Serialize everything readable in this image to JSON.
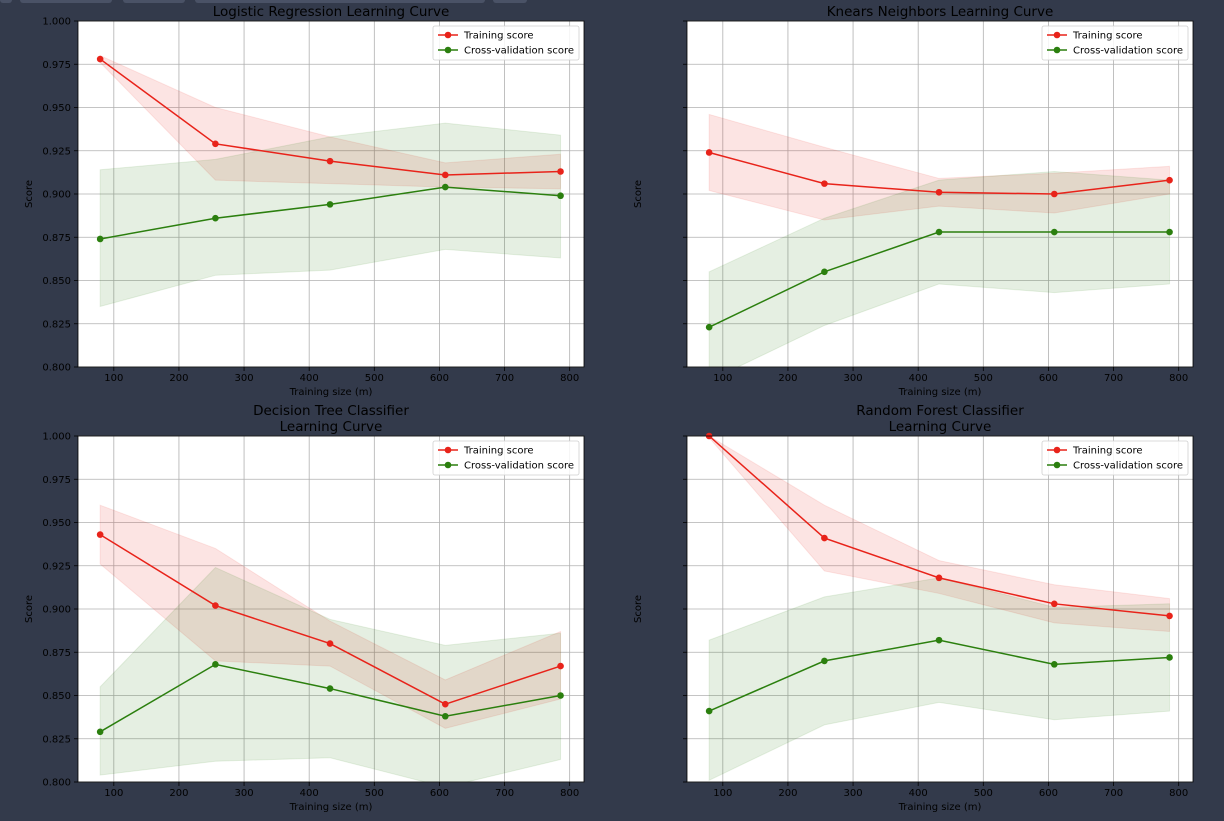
{
  "chart_data": [
    {
      "type": "line",
      "title": "Logistic Regression Learning Curve",
      "xlabel": "Training size (m)",
      "ylabel": "Score",
      "xlim": [
        45,
        822
      ],
      "ylim": [
        0.8,
        1.0
      ],
      "xticks": [
        "100",
        "200",
        "300",
        "400",
        "500",
        "600",
        "700",
        "800"
      ],
      "yticks": [
        "0.800",
        "0.825",
        "0.850",
        "0.875",
        "0.900",
        "0.925",
        "0.950",
        "0.975",
        "1.000"
      ],
      "show_ytick_labels": true,
      "grid": true,
      "legend_placement": "upper-right",
      "x": [
        79,
        256,
        432,
        609,
        786
      ],
      "series": [
        {
          "name": "Training score",
          "color": "#e8231a",
          "values": [
            0.978,
            0.929,
            0.919,
            0.911,
            0.913
          ],
          "band_low": [
            0.976,
            0.908,
            0.906,
            0.904,
            0.903
          ],
          "band_high": [
            0.98,
            0.95,
            0.933,
            0.918,
            0.923
          ]
        },
        {
          "name": "Cross-validation score",
          "color": "#2b7f0e",
          "values": [
            0.874,
            0.886,
            0.894,
            0.904,
            0.899
          ],
          "band_low": [
            0.835,
            0.853,
            0.856,
            0.868,
            0.863
          ],
          "band_high": [
            0.914,
            0.92,
            0.933,
            0.941,
            0.934
          ]
        }
      ]
    },
    {
      "type": "line",
      "title": "Knears Neighbors Learning Curve",
      "xlabel": "Training size (m)",
      "ylabel": "Score",
      "xlim": [
        45,
        822
      ],
      "ylim": [
        0.8,
        1.0
      ],
      "xticks": [
        "100",
        "200",
        "300",
        "400",
        "500",
        "600",
        "700",
        "800"
      ],
      "yticks": [],
      "show_ytick_labels": false,
      "grid": true,
      "legend_placement": "upper-right",
      "x": [
        79,
        256,
        432,
        609,
        786
      ],
      "series": [
        {
          "name": "Training score",
          "color": "#e8231a",
          "values": [
            0.924,
            0.906,
            0.901,
            0.9,
            0.908
          ],
          "band_low": [
            0.902,
            0.885,
            0.893,
            0.889,
            0.9
          ],
          "band_high": [
            0.946,
            0.927,
            0.909,
            0.912,
            0.916
          ]
        },
        {
          "name": "Cross-validation score",
          "color": "#2b7f0e",
          "values": [
            0.823,
            0.855,
            0.878,
            0.878,
            0.878
          ],
          "band_low": [
            0.792,
            0.824,
            0.848,
            0.843,
            0.848
          ],
          "band_high": [
            0.855,
            0.886,
            0.908,
            0.913,
            0.908
          ]
        }
      ]
    },
    {
      "type": "line",
      "title": "Decision Tree Classifier\nLearning Curve",
      "xlabel": "Training size (m)",
      "ylabel": "Score",
      "xlim": [
        45,
        822
      ],
      "ylim": [
        0.8,
        1.0
      ],
      "xticks": [
        "100",
        "200",
        "300",
        "400",
        "500",
        "600",
        "700",
        "800"
      ],
      "yticks": [
        "0.800",
        "0.825",
        "0.850",
        "0.875",
        "0.900",
        "0.925",
        "0.950",
        "0.975",
        "1.000"
      ],
      "show_ytick_labels": true,
      "grid": true,
      "legend_placement": "upper-right",
      "x": [
        79,
        256,
        432,
        609,
        786
      ],
      "series": [
        {
          "name": "Training score",
          "color": "#e8231a",
          "values": [
            0.943,
            0.902,
            0.88,
            0.845,
            0.867
          ],
          "band_low": [
            0.926,
            0.87,
            0.867,
            0.831,
            0.848
          ],
          "band_high": [
            0.96,
            0.935,
            0.893,
            0.859,
            0.887
          ]
        },
        {
          "name": "Cross-validation score",
          "color": "#2b7f0e",
          "values": [
            0.829,
            0.868,
            0.854,
            0.838,
            0.85
          ],
          "band_low": [
            0.804,
            0.812,
            0.814,
            0.797,
            0.813
          ],
          "band_high": [
            0.855,
            0.924,
            0.894,
            0.879,
            0.886
          ]
        }
      ]
    },
    {
      "type": "line",
      "title": "Random Forest Classifier\nLearning Curve",
      "xlabel": "Training size (m)",
      "ylabel": "Score",
      "xlim": [
        45,
        822
      ],
      "ylim": [
        0.8,
        1.0
      ],
      "xticks": [
        "100",
        "200",
        "300",
        "400",
        "500",
        "600",
        "700",
        "800"
      ],
      "yticks": [],
      "show_ytick_labels": false,
      "grid": true,
      "legend_placement": "upper-right",
      "x": [
        79,
        256,
        432,
        609,
        786
      ],
      "series": [
        {
          "name": "Training score",
          "color": "#e8231a",
          "values": [
            1.0,
            0.941,
            0.918,
            0.903,
            0.896
          ],
          "band_low": [
            0.999,
            0.922,
            0.909,
            0.892,
            0.887
          ],
          "band_high": [
            1.0,
            0.96,
            0.928,
            0.914,
            0.906
          ]
        },
        {
          "name": "Cross-validation score",
          "color": "#2b7f0e",
          "values": [
            0.841,
            0.87,
            0.882,
            0.868,
            0.872
          ],
          "band_low": [
            0.801,
            0.833,
            0.846,
            0.836,
            0.841
          ],
          "band_high": [
            0.882,
            0.907,
            0.918,
            0.901,
            0.903
          ]
        }
      ]
    }
  ]
}
